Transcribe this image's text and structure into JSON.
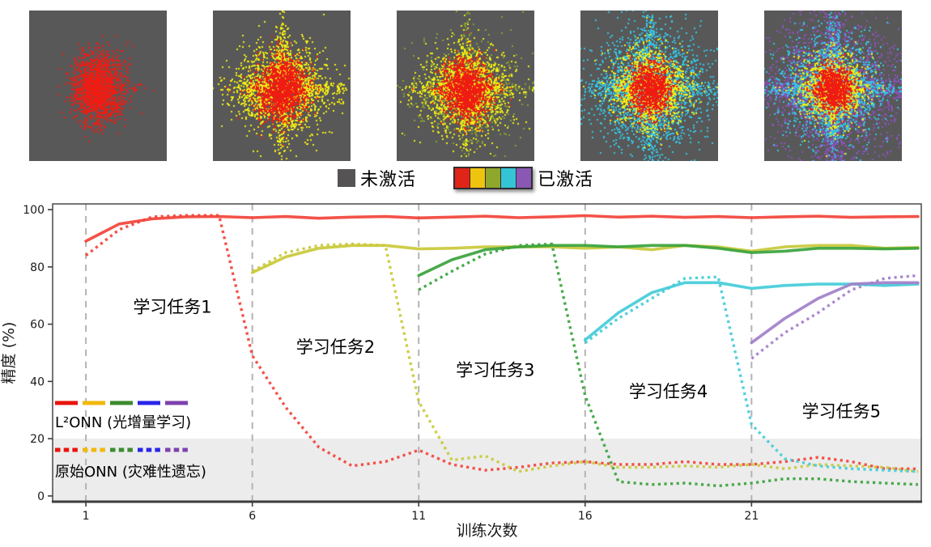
{
  "top_panels": {
    "background": "#585858",
    "description": "activation-maps",
    "panels": [
      {
        "name": "task1-activation-map",
        "layers": [
          {
            "color": "#ee1c12",
            "sigma": 17,
            "aspect": 1.25,
            "count": 1600,
            "streak": 0.06
          }
        ]
      },
      {
        "name": "task2-activation-map",
        "layers": [
          {
            "color": "#f2ee12",
            "sigma": 27,
            "aspect": 1.0,
            "count": 2300,
            "streak": 0.25
          },
          {
            "color": "#ee1c12",
            "sigma": 16,
            "aspect": 1.15,
            "count": 1500,
            "streak": 0.08
          }
        ]
      },
      {
        "name": "task3-activation-map",
        "layers": [
          {
            "color": "#87a034",
            "sigma": 31,
            "aspect": 0.95,
            "count": 1000,
            "streak": 0.3
          },
          {
            "color": "#f2ee12",
            "sigma": 25,
            "aspect": 1.0,
            "count": 1900,
            "streak": 0.2
          },
          {
            "color": "#ee1c12",
            "sigma": 15,
            "aspect": 1.2,
            "count": 1400,
            "streak": 0.08
          }
        ]
      },
      {
        "name": "task4-activation-map",
        "layers": [
          {
            "color": "#35c4e6",
            "sigma": 36,
            "aspect": 1.0,
            "count": 2800,
            "streak": 0.3
          },
          {
            "color": "#f2ee12",
            "sigma": 22,
            "aspect": 1.0,
            "count": 1500,
            "streak": 0.15
          },
          {
            "color": "#ee1c12",
            "sigma": 13,
            "aspect": 1.25,
            "count": 1100,
            "streak": 0.05
          }
        ]
      },
      {
        "name": "task5-activation-map",
        "layers": [
          {
            "color": "#8b52bd",
            "sigma": 46,
            "aspect": 1.0,
            "count": 3200,
            "streak": 0.45
          },
          {
            "color": "#35c4e6",
            "sigma": 31,
            "aspect": 1.0,
            "count": 2300,
            "streak": 0.3
          },
          {
            "color": "#f2ee12",
            "sigma": 20,
            "aspect": 1.0,
            "count": 1300,
            "streak": 0.15
          },
          {
            "color": "#ee1c12",
            "sigma": 12,
            "aspect": 1.2,
            "count": 1000,
            "streak": 0.05
          }
        ]
      }
    ]
  },
  "activation_legend": {
    "inactive_label": "未激活",
    "active_label": "已激活",
    "inactive_color": "#555353",
    "active_colors": [
      "#e02418",
      "#efc40e",
      "#8fa72a",
      "#35c4d6",
      "#8a58b4"
    ]
  },
  "chart_data": {
    "type": "line",
    "title": "",
    "xlabel": "训练次数",
    "ylabel": "精度 (%)",
    "xlim": [
      0,
      26.1
    ],
    "ylim": [
      -2,
      102
    ],
    "x_ticks": [
      1,
      6,
      11,
      16,
      21
    ],
    "x_tick_labels": [
      "1",
      "6",
      "11",
      "16",
      "21"
    ],
    "y_ticks": [
      0,
      20,
      40,
      60,
      80,
      100
    ],
    "y_tick_labels": [
      "0",
      "20",
      "40",
      "60",
      "80",
      "100"
    ],
    "grid": "dashed-vertical-at-task-boundaries",
    "task_boundaries": [
      1,
      6,
      11,
      16,
      21
    ],
    "shaded_band": {
      "from": 0,
      "to": 20,
      "color": "#ececec"
    },
    "series": [
      {
        "name": "L2ONN-task1",
        "style": "solid",
        "color": "#f2433a",
        "x": [
          1,
          2,
          3,
          4,
          5,
          6,
          7,
          8,
          9,
          10,
          11,
          12,
          13,
          14,
          15,
          16,
          17,
          18,
          19,
          20,
          21,
          22,
          23,
          24,
          25,
          26
        ],
        "y": [
          89,
          95,
          96.8,
          97.5,
          97.6,
          97.2,
          97.6,
          97.0,
          97.4,
          97.6,
          97.1,
          97.4,
          97.7,
          97.2,
          97.5,
          97.9,
          97.4,
          97.7,
          97.3,
          97.6,
          97.2,
          97.5,
          97.7,
          97.3,
          97.5,
          97.6
        ]
      },
      {
        "name": "originalONN-task1",
        "style": "dotted",
        "color": "#f2433a",
        "x": [
          1,
          2,
          3,
          4,
          5,
          6,
          7,
          8,
          9,
          10,
          11,
          12,
          13,
          14,
          15,
          16,
          17,
          18,
          19,
          20,
          21,
          22,
          23,
          24,
          25,
          26
        ],
        "y": [
          84,
          93,
          97.5,
          98,
          98,
          49,
          31,
          17,
          10.5,
          12,
          16,
          11,
          9,
          10,
          11.5,
          12,
          11,
          11,
          12,
          11,
          11,
          12,
          13.5,
          12,
          9.5,
          9.5
        ]
      },
      {
        "name": "L2ONN-task2",
        "style": "solid",
        "color": "#c9c93a",
        "x": [
          6,
          7,
          8,
          9,
          10,
          11,
          12,
          13,
          14,
          15,
          16,
          17,
          18,
          19,
          20,
          21,
          22,
          23,
          24,
          25,
          26
        ],
        "y": [
          78,
          83.5,
          86.5,
          87.5,
          87.5,
          86.3,
          86.5,
          87,
          87,
          87,
          86.5,
          87,
          86,
          87.5,
          87,
          85.5,
          87,
          87.5,
          87.5,
          86.5,
          86.8
        ]
      },
      {
        "name": "originalONN-task2",
        "style": "dotted",
        "color": "#c9c93a",
        "x": [
          6,
          7,
          8,
          9,
          10,
          11,
          12,
          13,
          14,
          15,
          16,
          17,
          18,
          19,
          20,
          21,
          22,
          23,
          24,
          25,
          26
        ],
        "y": [
          78.5,
          85,
          87.5,
          88,
          87.5,
          33,
          12.5,
          14,
          8.5,
          10.5,
          12,
          10,
          10,
          10.5,
          10,
          11,
          9.5,
          11,
          10.5,
          10,
          8.5
        ]
      },
      {
        "name": "L2ONN-task3",
        "style": "solid",
        "color": "#3aa33c",
        "x": [
          11,
          12,
          13,
          14,
          15,
          16,
          17,
          18,
          19,
          20,
          21,
          22,
          23,
          24,
          25,
          26
        ],
        "y": [
          77,
          82.5,
          86,
          87,
          87.5,
          87.5,
          87,
          87.5,
          87.5,
          86.5,
          85,
          85.5,
          86.5,
          86.5,
          86.3,
          86.5
        ]
      },
      {
        "name": "originalONN-task3",
        "style": "dotted",
        "color": "#3aa33c",
        "x": [
          11,
          12,
          13,
          14,
          15,
          16,
          17,
          18,
          19,
          20,
          21,
          22,
          23,
          24,
          25,
          26
        ],
        "y": [
          72,
          78.5,
          84.5,
          87.5,
          88,
          35,
          5,
          4,
          4.5,
          3.5,
          4.5,
          6,
          6,
          5,
          4.5,
          4
        ]
      },
      {
        "name": "L2ONN-task4",
        "style": "solid",
        "color": "#43ccd9",
        "x": [
          16,
          17,
          18,
          19,
          20,
          21,
          22,
          23,
          24,
          25,
          26
        ],
        "y": [
          54.5,
          64,
          71,
          74.5,
          74.5,
          72.5,
          73.5,
          74,
          74,
          73.5,
          74
        ]
      },
      {
        "name": "originalONN-task4",
        "style": "dotted",
        "color": "#43ccd9",
        "x": [
          16,
          17,
          18,
          19,
          20,
          21,
          22,
          23,
          24,
          25,
          26
        ],
        "y": [
          53.5,
          62,
          69,
          76,
          76.5,
          25,
          13,
          10.5,
          9.5,
          9,
          8.5
        ]
      },
      {
        "name": "L2ONN-task5",
        "style": "solid",
        "color": "#a27fca",
        "x": [
          21,
          22,
          23,
          24,
          25,
          26
        ],
        "y": [
          53.5,
          62,
          69,
          74,
          74.5,
          74.5
        ]
      },
      {
        "name": "originalONN-task5",
        "style": "dotted",
        "color": "#a27fca",
        "x": [
          21,
          22,
          23,
          24,
          25,
          26
        ],
        "y": [
          48,
          57,
          64,
          72,
          76,
          77
        ]
      }
    ],
    "annotations": [
      {
        "label": "学习任务1",
        "x": 3.6,
        "y": 64
      },
      {
        "label": "学习任务2",
        "x": 8.5,
        "y": 50
      },
      {
        "label": "学习任务3",
        "x": 13.3,
        "y": 42
      },
      {
        "label": "学习任务4",
        "x": 18.5,
        "y": 34.5
      },
      {
        "label": "学习任务5",
        "x": 23.7,
        "y": 27.5
      }
    ],
    "legend": {
      "position": "lower-left",
      "swatch_colors": [
        "#e8140c",
        "#f0b90c",
        "#3d8b2f",
        "#2a25e8",
        "#7e42ad"
      ],
      "entries": [
        {
          "label": "L²ONN (光增量学习)",
          "style": "solid"
        },
        {
          "label": "原始ONN (灾难性遗忘)",
          "style": "dotted"
        }
      ]
    },
    "axis_color": "#3c3c3c",
    "gridline_color": "#b3b3b3",
    "text_color": "#1a1a1a"
  }
}
